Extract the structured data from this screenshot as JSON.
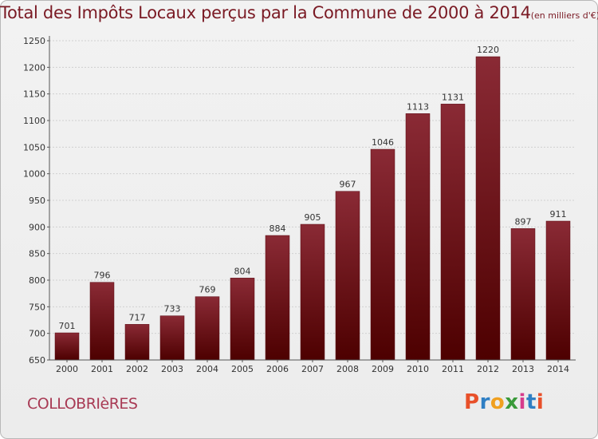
{
  "chart_data": {
    "type": "bar",
    "title": "Total des Impôts Locaux perçus par la Commune de 2000 à 2014",
    "title_unit": "(en milliers d'€)",
    "xlabel": "",
    "ylabel": "",
    "categories": [
      "2000",
      "2001",
      "2002",
      "2003",
      "2004",
      "2005",
      "2006",
      "2007",
      "2008",
      "2009",
      "2010",
      "2011",
      "2012",
      "2013",
      "2014"
    ],
    "values": [
      701,
      796,
      717,
      733,
      769,
      804,
      884,
      905,
      967,
      1046,
      1113,
      1131,
      1220,
      897,
      911
    ],
    "ylim": [
      650,
      1250
    ],
    "yticks": [
      650,
      700,
      750,
      800,
      850,
      900,
      950,
      1000,
      1050,
      1100,
      1150,
      1200,
      1250
    ],
    "grid": true,
    "bar_color_top": "#8a2a35",
    "bar_color_bottom": "#4d0000"
  },
  "footer": {
    "commune": "COLLOBRIèRES",
    "logo_letters": [
      "P",
      "r",
      "o",
      "x",
      "i",
      "t",
      "i"
    ],
    "logo_colors": [
      "#e8502a",
      "#2f7fc4",
      "#f0a020",
      "#3a9a3a",
      "#d63c8c",
      "#2f7fc4",
      "#e8502a"
    ]
  }
}
